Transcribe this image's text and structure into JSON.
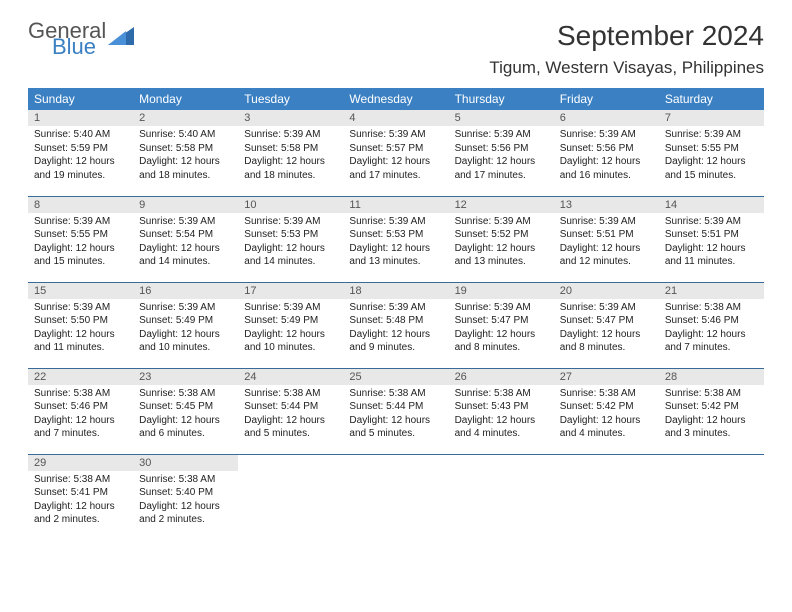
{
  "logo": {
    "text1": "General",
    "text2": "Blue",
    "color1": "#555555",
    "color2": "#3a80c3"
  },
  "title": "September 2024",
  "location": "Tigum, Western Visayas, Philippines",
  "colors": {
    "header_bg": "#3a80c3",
    "header_fg": "#ffffff",
    "daynum_bg": "#e8e8e8",
    "border": "#3a6a9a"
  },
  "weekdays": [
    "Sunday",
    "Monday",
    "Tuesday",
    "Wednesday",
    "Thursday",
    "Friday",
    "Saturday"
  ],
  "weeks": [
    [
      {
        "n": "1",
        "sunrise": "5:40 AM",
        "sunset": "5:59 PM",
        "daylight": "12 hours and 19 minutes."
      },
      {
        "n": "2",
        "sunrise": "5:40 AM",
        "sunset": "5:58 PM",
        "daylight": "12 hours and 18 minutes."
      },
      {
        "n": "3",
        "sunrise": "5:39 AM",
        "sunset": "5:58 PM",
        "daylight": "12 hours and 18 minutes."
      },
      {
        "n": "4",
        "sunrise": "5:39 AM",
        "sunset": "5:57 PM",
        "daylight": "12 hours and 17 minutes."
      },
      {
        "n": "5",
        "sunrise": "5:39 AM",
        "sunset": "5:56 PM",
        "daylight": "12 hours and 17 minutes."
      },
      {
        "n": "6",
        "sunrise": "5:39 AM",
        "sunset": "5:56 PM",
        "daylight": "12 hours and 16 minutes."
      },
      {
        "n": "7",
        "sunrise": "5:39 AM",
        "sunset": "5:55 PM",
        "daylight": "12 hours and 15 minutes."
      }
    ],
    [
      {
        "n": "8",
        "sunrise": "5:39 AM",
        "sunset": "5:55 PM",
        "daylight": "12 hours and 15 minutes."
      },
      {
        "n": "9",
        "sunrise": "5:39 AM",
        "sunset": "5:54 PM",
        "daylight": "12 hours and 14 minutes."
      },
      {
        "n": "10",
        "sunrise": "5:39 AM",
        "sunset": "5:53 PM",
        "daylight": "12 hours and 14 minutes."
      },
      {
        "n": "11",
        "sunrise": "5:39 AM",
        "sunset": "5:53 PM",
        "daylight": "12 hours and 13 minutes."
      },
      {
        "n": "12",
        "sunrise": "5:39 AM",
        "sunset": "5:52 PM",
        "daylight": "12 hours and 13 minutes."
      },
      {
        "n": "13",
        "sunrise": "5:39 AM",
        "sunset": "5:51 PM",
        "daylight": "12 hours and 12 minutes."
      },
      {
        "n": "14",
        "sunrise": "5:39 AM",
        "sunset": "5:51 PM",
        "daylight": "12 hours and 11 minutes."
      }
    ],
    [
      {
        "n": "15",
        "sunrise": "5:39 AM",
        "sunset": "5:50 PM",
        "daylight": "12 hours and 11 minutes."
      },
      {
        "n": "16",
        "sunrise": "5:39 AM",
        "sunset": "5:49 PM",
        "daylight": "12 hours and 10 minutes."
      },
      {
        "n": "17",
        "sunrise": "5:39 AM",
        "sunset": "5:49 PM",
        "daylight": "12 hours and 10 minutes."
      },
      {
        "n": "18",
        "sunrise": "5:39 AM",
        "sunset": "5:48 PM",
        "daylight": "12 hours and 9 minutes."
      },
      {
        "n": "19",
        "sunrise": "5:39 AM",
        "sunset": "5:47 PM",
        "daylight": "12 hours and 8 minutes."
      },
      {
        "n": "20",
        "sunrise": "5:39 AM",
        "sunset": "5:47 PM",
        "daylight": "12 hours and 8 minutes."
      },
      {
        "n": "21",
        "sunrise": "5:38 AM",
        "sunset": "5:46 PM",
        "daylight": "12 hours and 7 minutes."
      }
    ],
    [
      {
        "n": "22",
        "sunrise": "5:38 AM",
        "sunset": "5:46 PM",
        "daylight": "12 hours and 7 minutes."
      },
      {
        "n": "23",
        "sunrise": "5:38 AM",
        "sunset": "5:45 PM",
        "daylight": "12 hours and 6 minutes."
      },
      {
        "n": "24",
        "sunrise": "5:38 AM",
        "sunset": "5:44 PM",
        "daylight": "12 hours and 5 minutes."
      },
      {
        "n": "25",
        "sunrise": "5:38 AM",
        "sunset": "5:44 PM",
        "daylight": "12 hours and 5 minutes."
      },
      {
        "n": "26",
        "sunrise": "5:38 AM",
        "sunset": "5:43 PM",
        "daylight": "12 hours and 4 minutes."
      },
      {
        "n": "27",
        "sunrise": "5:38 AM",
        "sunset": "5:42 PM",
        "daylight": "12 hours and 4 minutes."
      },
      {
        "n": "28",
        "sunrise": "5:38 AM",
        "sunset": "5:42 PM",
        "daylight": "12 hours and 3 minutes."
      }
    ],
    [
      {
        "n": "29",
        "sunrise": "5:38 AM",
        "sunset": "5:41 PM",
        "daylight": "12 hours and 2 minutes."
      },
      {
        "n": "30",
        "sunrise": "5:38 AM",
        "sunset": "5:40 PM",
        "daylight": "12 hours and 2 minutes."
      },
      null,
      null,
      null,
      null,
      null
    ]
  ],
  "labels": {
    "sunrise": "Sunrise:",
    "sunset": "Sunset:",
    "daylight": "Daylight:"
  }
}
